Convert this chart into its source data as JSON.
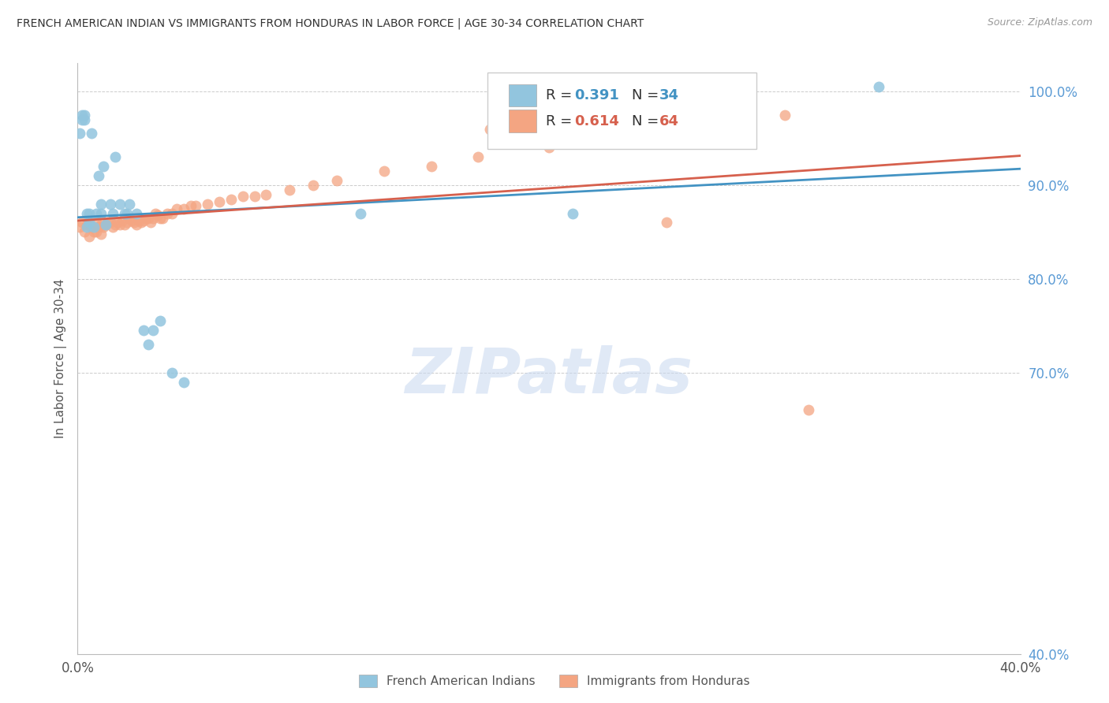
{
  "title": "FRENCH AMERICAN INDIAN VS IMMIGRANTS FROM HONDURAS IN LABOR FORCE | AGE 30-34 CORRELATION CHART",
  "source": "Source: ZipAtlas.com",
  "ylabel": "In Labor Force | Age 30-34",
  "legend_blue_R": "0.391",
  "legend_blue_N": "34",
  "legend_pink_R": "0.614",
  "legend_pink_N": "64",
  "legend_label_blue": "French American Indians",
  "legend_label_pink": "Immigrants from Honduras",
  "xlim": [
    0.0,
    0.4
  ],
  "ylim": [
    0.4,
    1.03
  ],
  "yticks": [
    0.4,
    0.7,
    0.8,
    0.9,
    1.0
  ],
  "ytick_labels": [
    "40.0%",
    "70.0%",
    "80.0%",
    "90.0%",
    "100.0%"
  ],
  "xticks": [
    0.0,
    0.1,
    0.2,
    0.3,
    0.4
  ],
  "xtick_labels": [
    "0.0%",
    "",
    "",
    "",
    "40.0%"
  ],
  "watermark": "ZIPatlas",
  "blue_color": "#92c5de",
  "pink_color": "#f4a582",
  "blue_line_color": "#4393c3",
  "pink_line_color": "#d6604d",
  "grid_color": "#cccccc",
  "background_color": "#ffffff",
  "blue_x": [
    0.001,
    0.002,
    0.002,
    0.003,
    0.003,
    0.004,
    0.004,
    0.005,
    0.005,
    0.006,
    0.007,
    0.008,
    0.009,
    0.01,
    0.01,
    0.011,
    0.012,
    0.014,
    0.015,
    0.016,
    0.018,
    0.02,
    0.021,
    0.022,
    0.025,
    0.028,
    0.03,
    0.032,
    0.035,
    0.04,
    0.045,
    0.12,
    0.21,
    0.34
  ],
  "blue_y": [
    0.955,
    0.97,
    0.975,
    0.97,
    0.975,
    0.855,
    0.87,
    0.87,
    0.86,
    0.955,
    0.855,
    0.87,
    0.91,
    0.87,
    0.88,
    0.92,
    0.858,
    0.88,
    0.87,
    0.93,
    0.88,
    0.87,
    0.87,
    0.88,
    0.87,
    0.745,
    0.73,
    0.745,
    0.755,
    0.7,
    0.69,
    0.87,
    0.87,
    1.005
  ],
  "pink_x": [
    0.001,
    0.002,
    0.003,
    0.004,
    0.005,
    0.005,
    0.006,
    0.007,
    0.008,
    0.008,
    0.009,
    0.01,
    0.01,
    0.011,
    0.012,
    0.013,
    0.014,
    0.015,
    0.016,
    0.017,
    0.018,
    0.019,
    0.02,
    0.021,
    0.022,
    0.023,
    0.024,
    0.025,
    0.026,
    0.027,
    0.028,
    0.029,
    0.03,
    0.031,
    0.032,
    0.033,
    0.034,
    0.035,
    0.036,
    0.038,
    0.04,
    0.042,
    0.045,
    0.048,
    0.05,
    0.055,
    0.06,
    0.065,
    0.07,
    0.075,
    0.08,
    0.09,
    0.1,
    0.11,
    0.13,
    0.15,
    0.17,
    0.2,
    0.24,
    0.27,
    0.31,
    0.25,
    0.175,
    0.3
  ],
  "pink_y": [
    0.855,
    0.86,
    0.85,
    0.858,
    0.845,
    0.86,
    0.855,
    0.85,
    0.85,
    0.86,
    0.855,
    0.848,
    0.858,
    0.855,
    0.858,
    0.86,
    0.86,
    0.855,
    0.858,
    0.86,
    0.858,
    0.862,
    0.858,
    0.86,
    0.865,
    0.862,
    0.86,
    0.858,
    0.862,
    0.86,
    0.862,
    0.865,
    0.865,
    0.86,
    0.865,
    0.87,
    0.868,
    0.865,
    0.865,
    0.87,
    0.87,
    0.875,
    0.875,
    0.878,
    0.878,
    0.88,
    0.882,
    0.885,
    0.888,
    0.888,
    0.89,
    0.895,
    0.9,
    0.905,
    0.915,
    0.92,
    0.93,
    0.94,
    0.955,
    0.965,
    0.66,
    0.86,
    0.96,
    0.975
  ]
}
